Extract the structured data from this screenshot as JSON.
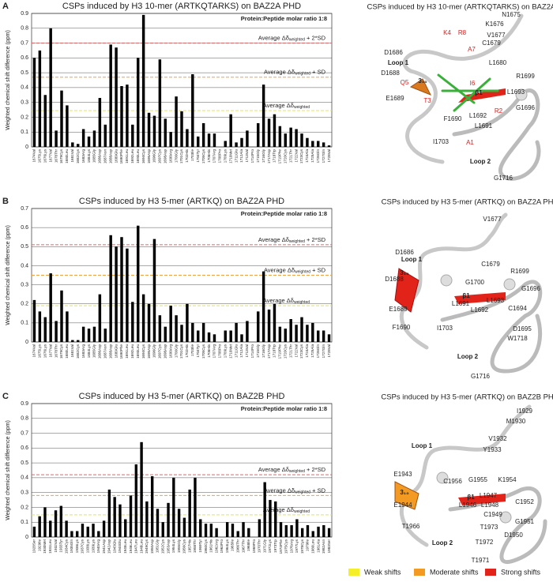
{
  "chart_data": [
    {
      "type": "bar",
      "panel": "A",
      "title": "CSPs induced by H3 10-mer (ARTKQTARKS) on BAZ2A PHD",
      "y_label": "Weighted chemical shift difference (ppm)",
      "annotation": "Protein:Peptide molar ratio 1:8",
      "color": "#000000",
      "grid": true,
      "ylim": [
        0,
        0.9
      ],
      "yticks": [
        0,
        0.1,
        0.2,
        0.3,
        0.4,
        0.5,
        0.6,
        0.7,
        0.8,
        0.9
      ],
      "categories": [
        "1674Val",
        "1675Lys",
        "1676Lys",
        "1677Val",
        "1678Thr",
        "1679Cys",
        "1680Leu",
        "1681Val",
        "1682Cys",
        "1683Arg",
        "1684Lys",
        "1685Gly",
        "1686Asp",
        "1687Asn",
        "1688Asp",
        "1689Glu",
        "1690Phe",
        "1691Leu",
        "1692Leu",
        "1693Leu",
        "1694Cys",
        "1695Asp",
        "1696Gly",
        "1697Cys",
        "1698Asp",
        "1699Arg",
        "1700Gly",
        "1701Cys",
        "1702His",
        "1703Ile",
        "1704Tyr",
        "1705Cys",
        "1706His",
        "1707Arg",
        "1708Pro",
        "1709Lys",
        "1710Met",
        "1711Glu",
        "1712Ala",
        "1713Val",
        "1714Pro",
        "1715Gly",
        "1716Gly",
        "1717Asp",
        "1718Trp",
        "1719Phe",
        "1720Cys",
        "1721Thr",
        "1722Val",
        "1723Cys",
        "1724Ala",
        "1725Ala",
        "1726Gln",
        "1727Gln",
        "1728Val"
      ],
      "values": [
        0.6,
        0.65,
        0.35,
        0.8,
        0.11,
        0.38,
        0.28,
        0.03,
        0.02,
        0.12,
        0.07,
        0.11,
        0.33,
        0.15,
        0.69,
        0.67,
        0.41,
        0.42,
        0.15,
        0.6,
        0.89,
        0.23,
        0.21,
        0.59,
        0.19,
        0.1,
        0.34,
        0.24,
        0.12,
        0.49,
        0.07,
        0.16,
        0.09,
        0.09,
        null,
        0.04,
        0.22,
        0.03,
        0.06,
        0.11,
        null,
        0.16,
        0.42,
        0.19,
        0.22,
        0.14,
        0.09,
        0.13,
        0.12,
        0.09,
        0.06,
        0.04,
        0.04,
        0.03,
        0.01
      ],
      "thresholds": [
        {
          "value": 0.7,
          "color": "#e06666",
          "text": "Average  Δδ",
          "sub": "weighted",
          "suffix": " + 2*SD"
        },
        {
          "value": 0.47,
          "color": "#f0a040",
          "text": "Average  Δδ",
          "sub": "weighted",
          "suffix": " + SD"
        },
        {
          "value": 0.245,
          "color": "#e8e060",
          "text": "Average  Δδ",
          "sub": "weighted"
        }
      ]
    },
    {
      "type": "bar",
      "panel": "B",
      "title": "CSPs induced by H3 5-mer (ARTKQ) on BAZ2A PHD",
      "y_label": "Weighted chemical shift difference (ppm)",
      "annotation": "Protein:Peptide molar ratio 1:8",
      "color": "#000000",
      "grid": true,
      "ylim": [
        0,
        0.7
      ],
      "yticks": [
        0,
        0.1,
        0.2,
        0.3,
        0.4,
        0.5,
        0.6,
        0.7
      ],
      "categories": [
        "1674Val",
        "1675Lys",
        "1676Lys",
        "1677Val",
        "1678Thr",
        "1679Cys",
        "1680Leu",
        "1681Val",
        "1682Cys",
        "1683Arg",
        "1684Lys",
        "1685Gly",
        "1686Asp",
        "1687Asn",
        "1688Asp",
        "1689Glu",
        "1690Phe",
        "1691Leu",
        "1692Leu",
        "1693Leu",
        "1694Cys",
        "1695Asp",
        "1696Gly",
        "1697Cys",
        "1698Asp",
        "1699Arg",
        "1700Gly",
        "1701Cys",
        "1702His",
        "1703Ile",
        "1704Tyr",
        "1705Cys",
        "1706His",
        "1707Arg",
        "1708Pro",
        "1709Lys",
        "1710Met",
        "1711Glu",
        "1712Ala",
        "1713Val",
        "1714Pro",
        "1715Gly",
        "1716Gly",
        "1717Asp",
        "1718Trp",
        "1719Phe",
        "1720Cys",
        "1721Thr",
        "1722Val",
        "1723Cys",
        "1724Ala",
        "1725Ala",
        "1726Gln",
        "1727Gln",
        "1728Val"
      ],
      "values": [
        0.22,
        0.16,
        0.13,
        0.36,
        0.11,
        0.27,
        0.16,
        0.01,
        0.01,
        0.08,
        0.07,
        0.08,
        0.25,
        0.07,
        0.56,
        0.5,
        0.55,
        0.49,
        0.21,
        0.61,
        0.25,
        0.2,
        0.54,
        0.14,
        0.08,
        0.19,
        0.14,
        0.09,
        0.2,
        0.1,
        0.06,
        0.1,
        0.05,
        0.04,
        null,
        0.06,
        0.06,
        0.1,
        0.04,
        0.11,
        null,
        0.16,
        0.37,
        0.17,
        0.2,
        0.08,
        0.07,
        0.12,
        0.09,
        0.13,
        0.09,
        0.1,
        0.06,
        0.06,
        0.04
      ],
      "thresholds": [
        {
          "value": 0.51,
          "color": "#e06666",
          "text": "Average  Δδ",
          "sub": "weighted",
          "suffix": " + 2*SD"
        },
        {
          "value": 0.35,
          "color": "#f0a040",
          "text": "Average  Δδ",
          "sub": "weighted",
          "suffix": " + SD"
        },
        {
          "value": 0.19,
          "color": "#e8e060",
          "text": "Average  Δδ",
          "sub": "weighted"
        }
      ]
    },
    {
      "type": "bar",
      "panel": "C",
      "title": "CSPs induced by H3 5-mer (ARTKQ) on BAZ2B PHD",
      "y_label": "Weighted chemical shift difference (ppm)",
      "annotation": "Protein:Peptide molar ratio 1:8",
      "color": "#000000",
      "grid": true,
      "ylim": [
        0,
        0.9
      ],
      "yticks": [
        0,
        0.1,
        0.2,
        0.3,
        0.4,
        0.5,
        0.6,
        0.7,
        0.8,
        0.9
      ],
      "categories": [
        "1928Ser",
        "1929Ile",
        "1930Met",
        "1931Leu",
        "1932Val",
        "1933Tyr",
        "1934Cys",
        "1935Gln",
        "1936Lys",
        "1937Cys",
        "1938Lys",
        "1939Lys",
        "1940Arg",
        "1941Asp",
        "1942Asp",
        "1943Glu",
        "1944Glu",
        "1945Leu",
        "1946Leu",
        "1947Leu",
        "1948Leu",
        "1949Cys",
        "1950Asp",
        "1951Gly",
        "1952Cys",
        "1953Asp",
        "1954Lys",
        "1955Gly",
        "1956Cys",
        "1957His",
        "1958Thr",
        "1959Tyr",
        "1960Cys",
        "1961His",
        "1962Arg",
        "1963Pro",
        "1964Lys",
        "1965Ile",
        "1966Thr",
        "1967Thr",
        "1968Ile",
        "1969Pro",
        "1970Thr",
        "1971Gly",
        "1972Lys",
        "1973Trp",
        "1974Phe",
        "1975Cys",
        "1976Arg",
        "1977Lys",
        "1978Cys",
        "1979Ile",
        "1980Leu",
        "1981Ala",
        "1982Asn",
        "1983Ser"
      ],
      "values": [
        0.07,
        0.14,
        0.2,
        0.11,
        0.18,
        0.21,
        0.11,
        0.04,
        0.04,
        0.09,
        0.07,
        0.09,
        0.04,
        0.11,
        0.32,
        0.27,
        0.22,
        0.12,
        0.28,
        0.49,
        0.64,
        0.24,
        0.41,
        0.19,
        0.1,
        0.23,
        0.4,
        0.19,
        0.13,
        0.32,
        0.4,
        0.12,
        0.09,
        0.09,
        0.06,
        null,
        0.1,
        0.09,
        0.04,
        0.1,
        0.06,
        null,
        0.12,
        0.37,
        0.25,
        0.24,
        0.1,
        0.08,
        0.08,
        0.12,
        0.06,
        0.08,
        0.04,
        0.07,
        0.08,
        0.06
      ],
      "thresholds": [
        {
          "value": 0.42,
          "color": "#e06666",
          "text": "Average  Δδ",
          "sub": "weighted",
          "suffix": " + 2*SD"
        },
        {
          "value": 0.28,
          "color": "#f0a040",
          "text": "Average  Δδ",
          "sub": "weighted",
          "suffix": " + SD"
        },
        {
          "value": 0.15,
          "color": "#e8e060",
          "text": "Average  Δδ",
          "sub": "weighted"
        }
      ]
    }
  ],
  "structures": [
    {
      "title": "CSPs induced by H3 10-mer (ARTKQTARKS) on BAZ2A PHD",
      "labels": [
        "N1675",
        "K1676",
        "V1677",
        "C1679",
        "D1686",
        "L1680",
        "Loop 1",
        "3₁₀",
        "D1688",
        "R1699",
        "E1689",
        "β1",
        "L1693",
        "L1692",
        "F1690",
        "G1696",
        "L1691",
        "I1703",
        "Loop 2",
        "G1716"
      ],
      "peptide_labels": [
        "K4",
        "R8",
        "A7",
        "Q5",
        "T3",
        "I6",
        "R2",
        "A1"
      ]
    },
    {
      "title": "CSPs induced by H3 5-mer (ARTKQ) on BAZ2A PHD",
      "labels": [
        "V1677",
        "D1686",
        "Loop 1",
        "C1679",
        "R1699",
        "D1688",
        "3₁₀",
        "G1700",
        "β1",
        "G1696",
        "L1691",
        "L1693",
        "E1689",
        "L1692",
        "C1694",
        "F1690",
        "I1703",
        "D1695",
        "W1718",
        "Loop 2",
        "G1716"
      ]
    },
    {
      "title": "CSPs induced by H3 5-mer (ARTKQ) on BAZ2B PHD",
      "labels": [
        "I1929",
        "M1930",
        "V1932",
        "Y1933",
        "Loop 1",
        "E1943",
        "C1956",
        "G1955",
        "K1954",
        "3₁₀",
        "β1",
        "L1947",
        "E1944",
        "L1946",
        "L1948",
        "C1952",
        "C1949",
        "G1951",
        "T1966",
        "T1973",
        "D1950",
        "Loop 2",
        "T1972",
        "T1971"
      ]
    }
  ],
  "color_key": [
    {
      "label": "Weak shifts",
      "color": "#f5ef2a"
    },
    {
      "label": "Moderate shifts",
      "color": "#f39a22"
    },
    {
      "label": "Strong shifts",
      "color": "#e2231a"
    }
  ]
}
